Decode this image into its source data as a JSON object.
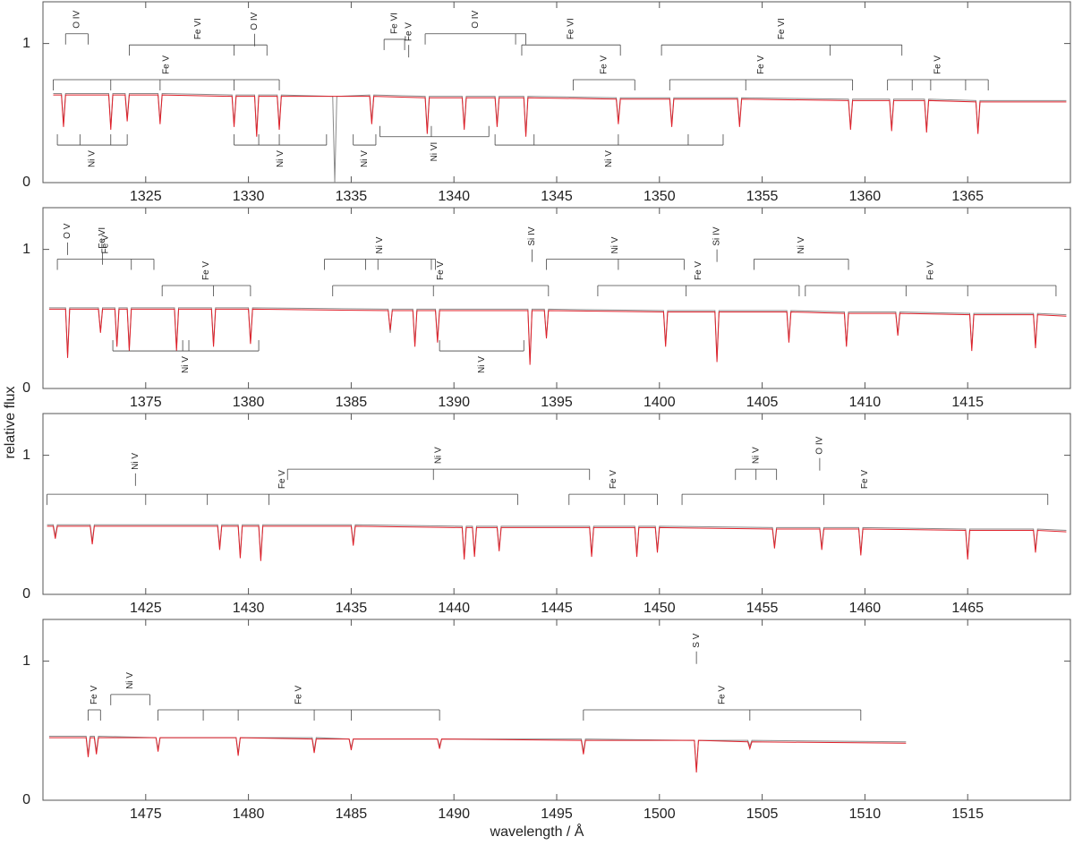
{
  "chart_data": [
    {
      "type": "line",
      "xlim": [
        1320,
        1370
      ],
      "ylim": [
        0,
        1.3
      ],
      "xticks": [
        1325,
        1330,
        1335,
        1340,
        1345,
        1350,
        1355,
        1360,
        1365
      ],
      "yticks": [
        0,
        1
      ],
      "x": [
        1320.5,
        1320.9,
        1321.0,
        1321.1,
        1323.2,
        1323.3,
        1323.4,
        1324.0,
        1324.1,
        1324.2,
        1325.6,
        1325.7,
        1325.8,
        1329.2,
        1329.3,
        1329.4,
        1330.3,
        1330.4,
        1330.5,
        1331.4,
        1331.5,
        1331.6,
        1334.1,
        1334.2,
        1334.3,
        1335.9,
        1336.0,
        1336.1,
        1338.6,
        1338.7,
        1338.8,
        1340.4,
        1340.5,
        1340.6,
        1342.0,
        1342.1,
        1342.2,
        1343.4,
        1343.5,
        1343.6,
        1347.9,
        1348.0,
        1348.1,
        1350.5,
        1350.6,
        1350.7,
        1353.8,
        1353.9,
        1354.0,
        1359.2,
        1359.3,
        1359.4,
        1361.2,
        1361.3,
        1361.4,
        1362.9,
        1363.0,
        1363.1,
        1365.4,
        1365.5,
        1365.6,
        1369.8
      ],
      "series": [
        {
          "color": "#8a8a8a",
          "values": [
            0.64,
            0.64,
            0.42,
            0.64,
            0.64,
            0.4,
            0.64,
            0.64,
            0.46,
            0.64,
            0.64,
            0.44,
            0.64,
            0.63,
            0.42,
            0.63,
            0.63,
            0.35,
            0.63,
            0.63,
            0.4,
            0.63,
            0.62,
            0.0,
            0.62,
            0.63,
            0.44,
            0.63,
            0.62,
            0.37,
            0.62,
            0.62,
            0.4,
            0.62,
            0.62,
            0.42,
            0.62,
            0.62,
            0.35,
            0.62,
            0.61,
            0.44,
            0.61,
            0.61,
            0.42,
            0.61,
            0.61,
            0.42,
            0.61,
            0.6,
            0.4,
            0.6,
            0.6,
            0.39,
            0.6,
            0.6,
            0.38,
            0.6,
            0.59,
            0.37,
            0.59,
            0.59
          ]
        },
        {
          "color": "#e0202a",
          "values": [
            0.63,
            0.63,
            0.4,
            0.63,
            0.63,
            0.38,
            0.63,
            0.63,
            0.44,
            0.63,
            0.63,
            0.42,
            0.63,
            0.62,
            0.4,
            0.62,
            0.62,
            0.33,
            0.62,
            0.62,
            0.38,
            0.62,
            0.62,
            0.62,
            0.62,
            0.62,
            0.42,
            0.62,
            0.61,
            0.35,
            0.61,
            0.61,
            0.38,
            0.61,
            0.61,
            0.4,
            0.61,
            0.61,
            0.33,
            0.61,
            0.6,
            0.42,
            0.6,
            0.6,
            0.4,
            0.6,
            0.6,
            0.4,
            0.6,
            0.59,
            0.38,
            0.59,
            0.59,
            0.37,
            0.59,
            0.59,
            0.36,
            0.59,
            0.58,
            0.35,
            0.58,
            0.58
          ]
        }
      ],
      "line_ids": [
        {
          "label": "O IV",
          "y": 1.07,
          "lines": [
            1321.1,
            1322.2
          ]
        },
        {
          "label": "Fe VI",
          "y": 0.99,
          "lines": [
            1324.2,
            1329.3,
            1330.9
          ]
        },
        {
          "label": "O IV",
          "y": 1.07,
          "lines": [
            1330.3
          ]
        },
        {
          "label": "Fe V",
          "y": 0.74,
          "lines": [
            1320.5,
            1323.3,
            1325.7,
            1329.3,
            1331.5
          ]
        },
        {
          "label": "Ni V",
          "y": 0.27,
          "lines": [
            1320.7,
            1321.8,
            1323.3,
            1324.1
          ]
        },
        {
          "label": "Ni V",
          "y": 0.27,
          "lines": [
            1329.3,
            1330.5,
            1331.5,
            1333.8
          ]
        },
        {
          "label": "Ni V",
          "y": 0.27,
          "lines": [
            1335.1,
            1336.2
          ]
        },
        {
          "label": "Fe VI",
          "y": 1.03,
          "lines": [
            1336.6,
            1337.6
          ]
        },
        {
          "label": "Fe V",
          "y": 0.99,
          "lines": [
            1337.8
          ]
        },
        {
          "label": "O IV",
          "y": 1.07,
          "lines": [
            1338.6,
            1343.0,
            1343.5
          ]
        },
        {
          "label": "Ni VI",
          "y": 0.33,
          "lines": [
            1336.4,
            1338.9,
            1341.7
          ]
        },
        {
          "label": "Fe VI",
          "y": 0.99,
          "lines": [
            1343.3,
            1348.1
          ]
        },
        {
          "label": "Fe V",
          "y": 0.74,
          "lines": [
            1345.8,
            1348.8
          ]
        },
        {
          "label": "Ni V",
          "y": 0.27,
          "lines": [
            1342.0,
            1343.9,
            1348.0,
            1351.4,
            1353.1
          ]
        },
        {
          "label": "Fe VI",
          "y": 0.99,
          "lines": [
            1350.1,
            1358.3,
            1361.8
          ]
        },
        {
          "label": "Fe V",
          "y": 0.74,
          "lines": [
            1350.5,
            1354.2,
            1359.4
          ]
        },
        {
          "label": "Fe V",
          "y": 0.74,
          "lines": [
            1361.1,
            1362.3,
            1363.2,
            1364.9,
            1366.0
          ]
        }
      ]
    },
    {
      "type": "line",
      "xlim": [
        1370,
        1420
      ],
      "ylim": [
        0,
        1.3
      ],
      "xticks": [
        1375,
        1380,
        1385,
        1390,
        1395,
        1400,
        1405,
        1410,
        1415
      ],
      "yticks": [
        0,
        1
      ],
      "x": [
        1370.3,
        1371.1,
        1371.2,
        1371.3,
        1372.7,
        1372.8,
        1372.9,
        1373.5,
        1373.6,
        1373.7,
        1374.1,
        1374.2,
        1374.3,
        1376.4,
        1376.5,
        1376.6,
        1378.2,
        1378.3,
        1378.4,
        1380.0,
        1380.1,
        1380.2,
        1386.8,
        1386.9,
        1387.0,
        1388.0,
        1388.1,
        1388.2,
        1389.1,
        1389.2,
        1389.3,
        1393.6,
        1393.7,
        1393.8,
        1394.4,
        1394.5,
        1394.6,
        1400.2,
        1400.3,
        1400.4,
        1402.7,
        1402.8,
        1402.9,
        1406.2,
        1406.3,
        1406.4,
        1409.0,
        1409.1,
        1409.2,
        1411.5,
        1411.6,
        1411.7,
        1415.1,
        1415.2,
        1415.3,
        1418.2,
        1418.3,
        1418.4,
        1419.8
      ],
      "series": [
        {
          "color": "#8a8a8a",
          "values": [
            0.58,
            0.58,
            0.24,
            0.58,
            0.58,
            0.41,
            0.58,
            0.58,
            0.32,
            0.58,
            0.58,
            0.29,
            0.58,
            0.58,
            0.29,
            0.58,
            0.58,
            0.32,
            0.58,
            0.58,
            0.33,
            0.58,
            0.57,
            0.4,
            0.57,
            0.57,
            0.32,
            0.57,
            0.57,
            0.35,
            0.57,
            0.57,
            0.19,
            0.57,
            0.57,
            0.37,
            0.57,
            0.56,
            0.32,
            0.56,
            0.56,
            0.21,
            0.56,
            0.56,
            0.35,
            0.56,
            0.55,
            0.31,
            0.55,
            0.55,
            0.39,
            0.55,
            0.54,
            0.29,
            0.54,
            0.54,
            0.31,
            0.54,
            0.53
          ]
        },
        {
          "color": "#e0202a",
          "values": [
            0.57,
            0.57,
            0.22,
            0.57,
            0.57,
            0.4,
            0.57,
            0.57,
            0.3,
            0.57,
            0.57,
            0.27,
            0.57,
            0.57,
            0.27,
            0.57,
            0.57,
            0.3,
            0.57,
            0.57,
            0.32,
            0.57,
            0.56,
            0.42,
            0.56,
            0.56,
            0.3,
            0.56,
            0.56,
            0.33,
            0.56,
            0.56,
            0.17,
            0.56,
            0.56,
            0.36,
            0.56,
            0.55,
            0.3,
            0.55,
            0.55,
            0.19,
            0.55,
            0.55,
            0.33,
            0.55,
            0.54,
            0.3,
            0.54,
            0.54,
            0.38,
            0.54,
            0.53,
            0.27,
            0.53,
            0.53,
            0.29,
            0.53,
            0.52
          ]
        }
      ],
      "line_ids": [
        {
          "label": "O V",
          "y": 1.05,
          "lines": [
            1371.2
          ]
        },
        {
          "label": "Fe VI",
          "y": 0.98,
          "lines": [
            1372.9
          ]
        },
        {
          "label": "Fe V",
          "y": 0.93,
          "lines": [
            1370.7,
            1374.3,
            1375.4
          ]
        },
        {
          "label": "Fe V",
          "y": 0.74,
          "lines": [
            1375.8,
            1378.3,
            1380.1
          ]
        },
        {
          "label": "Ni V",
          "y": 0.27,
          "lines": [
            1373.4,
            1376.8,
            1377.1,
            1380.5
          ]
        },
        {
          "label": "Ni V",
          "y": 0.93,
          "lines": [
            1383.7,
            1385.7,
            1386.3,
            1388.9,
            1389.1
          ]
        },
        {
          "label": "Fe V",
          "y": 0.74,
          "lines": [
            1384.1,
            1389.0,
            1394.6
          ]
        },
        {
          "label": "Ni V",
          "y": 0.27,
          "lines": [
            1389.3,
            1393.4
          ]
        },
        {
          "label": "Si IV",
          "y": 1.0,
          "lines": [
            1393.8
          ]
        },
        {
          "label": "Ni V",
          "y": 0.93,
          "lines": [
            1394.5,
            1398.0,
            1401.2
          ]
        },
        {
          "label": "Fe V",
          "y": 0.74,
          "lines": [
            1397.0,
            1401.3,
            1406.8
          ]
        },
        {
          "label": "Si IV",
          "y": 1.0,
          "lines": [
            1402.8
          ]
        },
        {
          "label": "Ni V",
          "y": 0.93,
          "lines": [
            1404.6,
            1409.2
          ]
        },
        {
          "label": "Fe V",
          "y": 0.74,
          "lines": [
            1407.1,
            1412.0,
            1415.0,
            1419.3
          ]
        }
      ]
    },
    {
      "type": "line",
      "xlim": [
        1420,
        1470
      ],
      "ylim": [
        0,
        1.3
      ],
      "xticks": [
        1425,
        1430,
        1435,
        1440,
        1445,
        1450,
        1455,
        1460,
        1465
      ],
      "yticks": [
        0,
        1
      ],
      "x": [
        1420.2,
        1420.5,
        1420.6,
        1420.7,
        1422.3,
        1422.4,
        1422.5,
        1428.5,
        1428.6,
        1428.7,
        1429.5,
        1429.6,
        1429.7,
        1430.5,
        1430.6,
        1430.7,
        1435.0,
        1435.1,
        1435.2,
        1440.4,
        1440.5,
        1440.6,
        1440.9,
        1441.0,
        1441.1,
        1442.1,
        1442.2,
        1442.3,
        1446.6,
        1446.7,
        1446.8,
        1448.8,
        1448.9,
        1449.0,
        1449.8,
        1449.9,
        1450.0,
        1455.5,
        1455.6,
        1455.7,
        1457.8,
        1457.9,
        1458.0,
        1459.7,
        1459.8,
        1459.9,
        1464.9,
        1465.0,
        1465.1,
        1468.2,
        1468.3,
        1468.4,
        1469.8
      ],
      "series": [
        {
          "color": "#8a8a8a",
          "values": [
            0.5,
            0.5,
            0.42,
            0.5,
            0.5,
            0.38,
            0.5,
            0.5,
            0.34,
            0.5,
            0.5,
            0.28,
            0.5,
            0.5,
            0.26,
            0.5,
            0.5,
            0.37,
            0.5,
            0.49,
            0.27,
            0.49,
            0.49,
            0.29,
            0.49,
            0.49,
            0.33,
            0.49,
            0.49,
            0.29,
            0.49,
            0.49,
            0.29,
            0.49,
            0.49,
            0.32,
            0.49,
            0.48,
            0.35,
            0.48,
            0.48,
            0.34,
            0.48,
            0.48,
            0.3,
            0.48,
            0.47,
            0.27,
            0.47,
            0.47,
            0.32,
            0.47,
            0.46
          ]
        },
        {
          "color": "#e0202a",
          "values": [
            0.49,
            0.49,
            0.4,
            0.49,
            0.49,
            0.36,
            0.49,
            0.49,
            0.32,
            0.49,
            0.49,
            0.26,
            0.49,
            0.49,
            0.24,
            0.49,
            0.49,
            0.35,
            0.49,
            0.48,
            0.25,
            0.48,
            0.48,
            0.27,
            0.48,
            0.48,
            0.31,
            0.48,
            0.48,
            0.27,
            0.48,
            0.48,
            0.27,
            0.48,
            0.48,
            0.3,
            0.48,
            0.47,
            0.33,
            0.47,
            0.47,
            0.32,
            0.47,
            0.47,
            0.28,
            0.47,
            0.46,
            0.25,
            0.46,
            0.46,
            0.3,
            0.46,
            0.45
          ]
        }
      ],
      "line_ids": [
        {
          "label": "Ni V",
          "y": 0.87,
          "lines": [
            1424.5
          ]
        },
        {
          "label": "Fe V",
          "y": 0.72,
          "lines": [
            1420.2,
            1425.0,
            1428.0,
            1431.0,
            1443.1
          ]
        },
        {
          "label": "Ni V",
          "y": 0.9,
          "lines": [
            1431.9,
            1439.0,
            1446.6
          ]
        },
        {
          "label": "Fe V",
          "y": 0.72,
          "lines": [
            1445.6,
            1448.3,
            1449.9
          ]
        },
        {
          "label": "Ni V",
          "y": 0.9,
          "lines": [
            1453.7,
            1454.7,
            1455.7
          ]
        },
        {
          "label": "O IV",
          "y": 0.98,
          "lines": [
            1457.8
          ]
        },
        {
          "label": "Fe V",
          "y": 0.72,
          "lines": [
            1451.1,
            1458.0,
            1468.9
          ]
        }
      ]
    },
    {
      "type": "line",
      "xlim": [
        1470,
        1520
      ],
      "ylim": [
        0,
        1.3
      ],
      "xticks": [
        1475,
        1480,
        1485,
        1490,
        1495,
        1500,
        1505,
        1510,
        1515
      ],
      "yticks": [
        0,
        1
      ],
      "x": [
        1470.3,
        1472.1,
        1472.2,
        1472.3,
        1472.5,
        1472.6,
        1472.7,
        1475.5,
        1475.6,
        1475.7,
        1479.4,
        1479.5,
        1479.6,
        1483.1,
        1483.2,
        1483.3,
        1484.9,
        1485.0,
        1485.1,
        1489.2,
        1489.3,
        1489.4,
        1496.2,
        1496.3,
        1496.4,
        1501.7,
        1501.8,
        1501.9,
        1504.3,
        1504.4,
        1504.5,
        1512.0
      ],
      "series": [
        {
          "color": "#8a8a8a",
          "values": [
            0.46,
            0.46,
            0.33,
            0.46,
            0.46,
            0.35,
            0.46,
            0.45,
            0.37,
            0.45,
            0.45,
            0.34,
            0.45,
            0.45,
            0.36,
            0.45,
            0.44,
            0.38,
            0.44,
            0.44,
            0.39,
            0.44,
            0.44,
            0.35,
            0.44,
            0.43,
            0.22,
            0.43,
            0.43,
            0.39,
            0.43,
            0.42
          ]
        },
        {
          "color": "#e0202a",
          "values": [
            0.45,
            0.45,
            0.31,
            0.45,
            0.45,
            0.33,
            0.45,
            0.45,
            0.35,
            0.45,
            0.45,
            0.32,
            0.45,
            0.44,
            0.34,
            0.44,
            0.44,
            0.36,
            0.44,
            0.44,
            0.37,
            0.44,
            0.43,
            0.33,
            0.43,
            0.43,
            0.2,
            0.43,
            0.42,
            0.37,
            0.42,
            0.41
          ]
        }
      ],
      "line_ids": [
        {
          "label": "Fe V",
          "y": 0.65,
          "lines": [
            1472.2,
            1472.8
          ]
        },
        {
          "label": "Ni V",
          "y": 0.76,
          "lines": [
            1473.3,
            1475.2
          ]
        },
        {
          "label": "Fe V",
          "y": 0.65,
          "lines": [
            1475.6,
            1477.8,
            1479.5,
            1483.2,
            1485.0,
            1489.3
          ]
        },
        {
          "label": "S V",
          "y": 1.07,
          "lines": [
            1501.8
          ]
        },
        {
          "label": "Fe V",
          "y": 0.65,
          "lines": [
            1496.3,
            1504.4,
            1509.8
          ]
        }
      ]
    }
  ],
  "xlabel": "wavelength / Å",
  "ylabel": "relative flux"
}
